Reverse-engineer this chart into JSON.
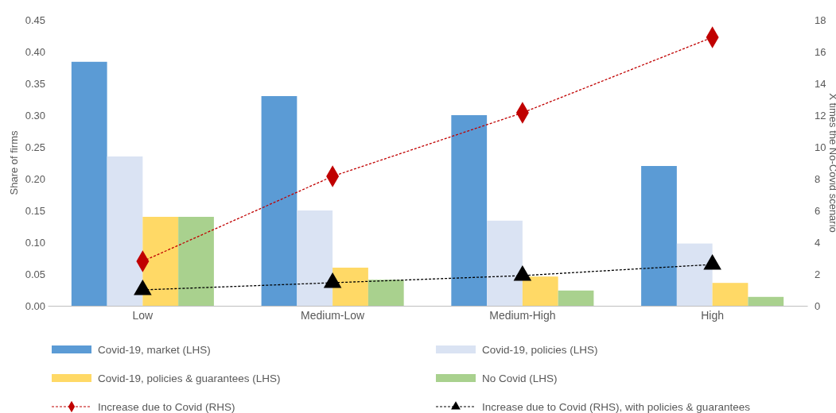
{
  "chart_data": {
    "type": "bar",
    "ylabel": "Share of firms",
    "y2label": "X times the No-Covid scenario",
    "categories": [
      "Low",
      "Medium-Low",
      "Medium-High",
      "High"
    ],
    "ylim": [
      0,
      0.45
    ],
    "yticks": [
      {
        "value": 0,
        "label": "0.00"
      },
      {
        "value": 0.05,
        "label": "0.05"
      },
      {
        "value": 0.1,
        "label": "0.10"
      },
      {
        "value": 0.15,
        "label": "0.15"
      },
      {
        "value": 0.2,
        "label": "0.20"
      },
      {
        "value": 0.25,
        "label": "0.25"
      },
      {
        "value": 0.3,
        "label": "0.30"
      },
      {
        "value": 0.35,
        "label": "0.35"
      },
      {
        "value": 0.4,
        "label": "0.40"
      },
      {
        "value": 0.45,
        "label": "0.45"
      }
    ],
    "y2lim": [
      0,
      18
    ],
    "y2ticks": [
      0,
      2,
      4,
      6,
      8,
      10,
      12,
      14,
      16,
      18
    ],
    "grid": false,
    "legend": "bottom",
    "series": [
      {
        "name": "Covid-19, market (LHS)",
        "color": "#5b9bd5",
        "values": [
          0.384,
          0.33,
          0.3,
          0.22
        ]
      },
      {
        "name": "Covid-19, policies (LHS)",
        "color": "#dae3f3",
        "values": [
          0.235,
          0.15,
          0.134,
          0.098
        ]
      },
      {
        "name": "Covid-19, policies & guarantees (LHS)",
        "color": "#ffd966",
        "values": [
          0.14,
          0.06,
          0.046,
          0.036
        ]
      },
      {
        "name": "No Covid (LHS)",
        "color": "#a9d18e",
        "values": [
          0.14,
          0.041,
          0.024,
          0.014
        ]
      },
      {
        "name": "Increase due to Covid (RHS)",
        "type": "line",
        "axis": "y2",
        "color": "#c00000",
        "marker": "diamond",
        "line_style": "dashed",
        "values": [
          2.8,
          8.15,
          12.15,
          16.9
        ]
      },
      {
        "name": "Increase due to Covid (RHS), with policies & guarantees",
        "type": "line",
        "axis": "y2",
        "color": "#000000",
        "marker": "triangle",
        "line_style": "dashed",
        "values": [
          1.0,
          1.45,
          1.9,
          2.6
        ]
      }
    ]
  }
}
